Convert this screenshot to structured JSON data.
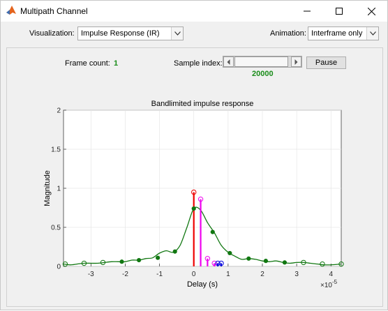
{
  "window": {
    "title": "Multipath Channel"
  },
  "toolbar": {
    "visualization_label": "Visualization:",
    "visualization_value": "Impulse Response (IR)",
    "animation_label": "Animation:",
    "animation_value": "Interframe only"
  },
  "controls": {
    "frame_count_label": "Frame count:",
    "frame_count_value": "1",
    "sample_index_label": "Sample index:",
    "sample_index_value": "20000",
    "pause_label": "Pause"
  },
  "colors": {
    "curve": "#117711",
    "stem_red": "#ee0000",
    "stem_magenta": "#ee00ee",
    "stem_blue": "#0000dd",
    "sample_green": "#198c19"
  },
  "chart_data": {
    "type": "line",
    "title": "Bandlimited impulse response",
    "xlabel": "Delay (s)",
    "ylabel": "Magnitude",
    "x_exponent_label": "×10",
    "x_exponent_power": "-5",
    "xlim": [
      -3.8,
      4.3
    ],
    "ylim": [
      0,
      2
    ],
    "xticks": [
      -3,
      -2,
      -1,
      0,
      1,
      2,
      3,
      4
    ],
    "xtick_labels": [
      "-3",
      "-2",
      "-1",
      "0",
      "1",
      "2",
      "3",
      "4"
    ],
    "yticks": [
      0,
      0.5,
      1,
      1.5,
      2
    ],
    "ytick_labels": [
      "0",
      "0.5",
      "1",
      "1.5",
      "2"
    ],
    "grid": true,
    "series": [
      {
        "role": "interpolated-response",
        "color": "#117711",
        "x": [
          -3.8,
          -3.6,
          -3.4,
          -3.2,
          -3.0,
          -2.8,
          -2.6,
          -2.4,
          -2.2,
          -2.0,
          -1.8,
          -1.6,
          -1.4,
          -1.2,
          -1.0,
          -0.8,
          -0.6,
          -0.4,
          -0.2,
          0.0,
          0.2,
          0.4,
          0.6,
          0.8,
          1.0,
          1.2,
          1.4,
          1.6,
          1.8,
          2.0,
          2.2,
          2.4,
          2.6,
          2.8,
          3.0,
          3.2,
          3.4,
          3.6,
          3.8,
          4.0,
          4.3
        ],
        "y": [
          0.03,
          0.02,
          0.03,
          0.04,
          0.04,
          0.04,
          0.05,
          0.06,
          0.06,
          0.06,
          0.08,
          0.08,
          0.1,
          0.11,
          0.17,
          0.2,
          0.18,
          0.27,
          0.5,
          0.74,
          0.72,
          0.56,
          0.43,
          0.27,
          0.18,
          0.13,
          0.09,
          0.1,
          0.09,
          0.07,
          0.06,
          0.07,
          0.05,
          0.04,
          0.05,
          0.05,
          0.04,
          0.03,
          0.02,
          0.02,
          0.03
        ]
      },
      {
        "role": "samples-filled",
        "color": "#117711",
        "x": [
          -2.1,
          -1.6,
          -1.05,
          -0.55,
          0.0,
          0.55,
          1.05,
          1.6,
          2.1,
          2.65
        ],
        "y": [
          0.06,
          0.08,
          0.11,
          0.19,
          0.74,
          0.44,
          0.17,
          0.1,
          0.07,
          0.05
        ]
      },
      {
        "role": "samples-hollow",
        "color": "#117711",
        "x": [
          -3.75,
          -3.2,
          -2.65,
          3.2,
          3.75,
          4.3
        ],
        "y": [
          0.03,
          0.04,
          0.05,
          0.05,
          0.03,
          0.03
        ]
      }
    ],
    "stems": [
      {
        "x": 0.0,
        "y": 0.95,
        "color": "#ee0000"
      },
      {
        "x": 0.2,
        "y": 0.86,
        "color": "#ee00ee"
      },
      {
        "x": 0.4,
        "y": 0.1,
        "color": "#ee00ee"
      },
      {
        "x": 0.6,
        "y": 0.04,
        "color": "#ee00ee"
      },
      {
        "x": 0.7,
        "y": 0.04,
        "color": "#0000dd"
      },
      {
        "x": 0.8,
        "y": 0.04,
        "color": "#0000dd"
      }
    ]
  }
}
